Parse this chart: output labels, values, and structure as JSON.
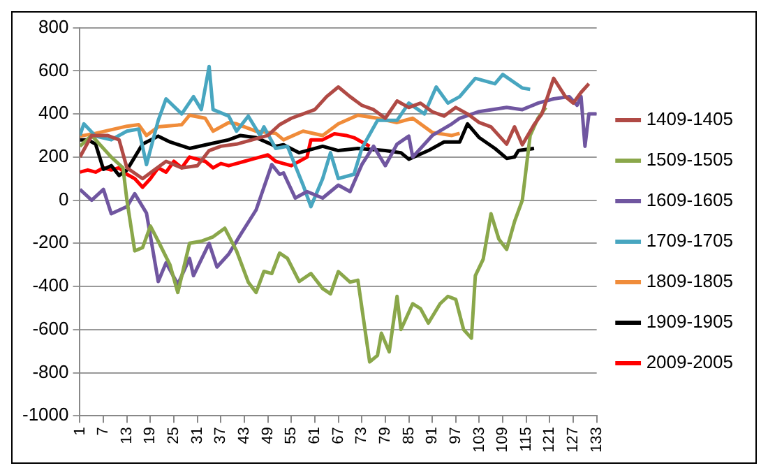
{
  "chart_data": {
    "type": "line",
    "xlim": [
      1,
      133
    ],
    "xticks": [
      1,
      7,
      13,
      19,
      25,
      31,
      37,
      43,
      49,
      55,
      61,
      67,
      73,
      79,
      85,
      91,
      97,
      103,
      109,
      115,
      121,
      127,
      133
    ],
    "ylim": [
      -1000,
      800
    ],
    "yticks": [
      -1000,
      -800,
      -600,
      -400,
      -200,
      0,
      200,
      400,
      600,
      800
    ],
    "grid": "y",
    "legend": "right",
    "marker": "none",
    "line_style": "solid",
    "series": [
      {
        "name": "1409-1405",
        "color": "#b04a45",
        "x": [
          1,
          4,
          8,
          11,
          13,
          17,
          20,
          23,
          27,
          31,
          34,
          37,
          41,
          45,
          49,
          52,
          55,
          58,
          61,
          64,
          67,
          70,
          73,
          76,
          79,
          82,
          85,
          88,
          91,
          94,
          97,
          100,
          103,
          106,
          110,
          112,
          114,
          117,
          119,
          122,
          125,
          127,
          129,
          131
        ],
        "values": [
          200,
          300,
          300,
          280,
          150,
          100,
          140,
          180,
          150,
          160,
          230,
          250,
          260,
          280,
          300,
          350,
          380,
          400,
          420,
          480,
          525,
          480,
          440,
          420,
          380,
          460,
          430,
          450,
          410,
          390,
          430,
          400,
          360,
          340,
          260,
          340,
          257,
          350,
          400,
          565,
          480,
          450,
          500,
          540
        ]
      },
      {
        "name": "1509-1505",
        "color": "#8aa74a",
        "x": [
          1,
          4,
          9,
          12,
          13,
          15,
          17,
          19,
          21,
          24,
          26,
          29,
          32,
          35,
          38,
          41,
          44,
          46,
          48,
          50,
          52,
          54,
          57,
          60,
          63,
          65,
          67,
          70,
          72,
          75,
          77,
          78,
          80,
          82,
          83,
          86,
          88,
          90,
          93,
          95,
          97,
          99,
          101,
          102,
          104,
          106,
          108,
          110,
          112,
          114,
          116,
          118,
          120
        ],
        "values": [
          250,
          300,
          200,
          150,
          0,
          -235,
          -220,
          -120,
          -190,
          -300,
          -428,
          -200,
          -190,
          -170,
          -130,
          -235,
          -380,
          -428,
          -330,
          -340,
          -245,
          -270,
          -377,
          -340,
          -410,
          -434,
          -331,
          -380,
          -371,
          -750,
          -720,
          -617,
          -703,
          -446,
          -600,
          -480,
          -503,
          -570,
          -480,
          -446,
          -460,
          -600,
          -640,
          -350,
          -274,
          -63,
          -180,
          -228,
          -100,
          0,
          300,
          380,
          430
        ]
      },
      {
        "name": "1609-1605",
        "color": "#7056a0",
        "x": [
          1,
          4,
          7,
          9,
          13,
          15,
          18,
          21,
          23,
          26,
          29,
          30,
          34,
          36,
          39,
          42,
          46,
          50,
          52,
          53,
          56,
          59,
          63,
          67,
          70,
          73,
          76,
          79,
          82,
          85,
          86,
          91,
          96,
          98,
          103,
          110,
          114,
          118,
          122,
          126,
          128,
          129,
          130,
          131,
          133
        ],
        "values": [
          50,
          0,
          50,
          -63,
          -30,
          30,
          -60,
          -377,
          -290,
          -390,
          -270,
          -350,
          -200,
          -310,
          -250,
          -160,
          -45,
          165,
          120,
          126,
          10,
          40,
          10,
          70,
          40,
          165,
          250,
          160,
          260,
          297,
          200,
          300,
          354,
          380,
          411,
          430,
          420,
          450,
          470,
          480,
          440,
          480,
          250,
          400,
          400
        ]
      },
      {
        "name": "1709-1705",
        "color": "#48a6c0",
        "x": [
          1,
          2,
          5,
          9,
          13,
          16,
          18,
          21,
          23,
          27,
          30,
          32,
          34,
          35,
          39,
          41,
          44,
          47,
          48,
          51,
          54,
          58,
          60,
          63,
          65,
          67,
          71,
          73,
          77,
          82,
          85,
          89,
          92,
          95,
          98,
          102,
          107,
          109,
          114,
          116
        ],
        "values": [
          300,
          354,
          297,
          280,
          320,
          330,
          165,
          370,
          470,
          400,
          480,
          420,
          620,
          420,
          390,
          320,
          390,
          300,
          340,
          240,
          250,
          70,
          -30,
          100,
          220,
          100,
          120,
          240,
          370,
          370,
          450,
          400,
          525,
          450,
          480,
          565,
          540,
          583,
          520,
          514
        ]
      },
      {
        "name": "1809-1805",
        "color": "#f08c3a",
        "x": [
          1,
          5,
          13,
          16,
          18,
          21,
          27,
          29,
          33,
          35,
          39,
          41,
          46,
          51,
          53,
          58,
          63,
          67,
          72,
          77,
          82,
          86,
          91,
          96,
          98
        ],
        "values": [
          297,
          310,
          343,
          350,
          300,
          340,
          350,
          394,
          380,
          320,
          360,
          354,
          320,
          310,
          280,
          320,
          300,
          354,
          394,
          380,
          360,
          380,
          314,
          300,
          310
        ]
      },
      {
        "name": "1909-1905",
        "color": "#000000",
        "x": [
          1,
          3,
          5,
          7,
          9,
          11,
          13,
          15,
          17,
          21,
          24,
          29,
          34,
          39,
          42,
          46,
          51,
          53,
          57,
          63,
          67,
          72,
          79,
          83,
          85,
          90,
          94,
          98,
          100,
          103,
          107,
          110,
          112,
          113,
          117
        ],
        "values": [
          280,
          280,
          260,
          143,
          160,
          115,
          140,
          200,
          260,
          297,
          270,
          240,
          260,
          280,
          300,
          290,
          250,
          257,
          220,
          250,
          230,
          240,
          230,
          220,
          190,
          230,
          270,
          270,
          354,
          290,
          240,
          194,
          200,
          230,
          240
        ]
      },
      {
        "name": "2009-2005",
        "color": "#ff0000",
        "x": [
          1,
          3,
          5,
          7,
          9,
          11,
          13,
          15,
          17,
          19,
          21,
          23,
          25,
          27,
          29,
          31,
          33,
          35,
          37,
          39,
          41,
          43,
          45,
          47,
          49,
          51,
          53,
          55,
          57,
          59,
          60,
          63,
          66,
          69,
          71,
          73,
          75
        ],
        "values": [
          130,
          140,
          130,
          150,
          140,
          150,
          120,
          100,
          60,
          100,
          150,
          130,
          180,
          150,
          200,
          190,
          180,
          150,
          170,
          160,
          170,
          180,
          190,
          200,
          210,
          180,
          170,
          160,
          180,
          200,
          280,
          280,
          308,
          300,
          290,
          270,
          250
        ]
      }
    ]
  }
}
